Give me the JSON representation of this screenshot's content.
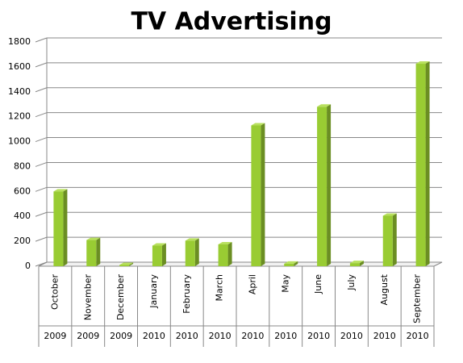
{
  "chart_data": {
    "type": "bar3d",
    "title": "TV Advertising",
    "categories": [
      "October",
      "November",
      "December",
      "January",
      "February",
      "March",
      "April",
      "May",
      "June",
      "July",
      "August",
      "September"
    ],
    "years": [
      "2009",
      "2009",
      "2009",
      "2010",
      "2010",
      "2010",
      "2010",
      "2010",
      "2010",
      "2010",
      "2010",
      "2010"
    ],
    "values": [
      600,
      210,
      10,
      165,
      205,
      175,
      1130,
      20,
      1280,
      25,
      405,
      1625
    ],
    "color": "#99cc33",
    "side_color": "#6b8e23",
    "top_color": "#b8e05e",
    "ylim": [
      0,
      1800
    ],
    "yticks": [
      0,
      200,
      400,
      600,
      800,
      1000,
      1200,
      1400,
      1600,
      1800
    ],
    "grid": true
  }
}
